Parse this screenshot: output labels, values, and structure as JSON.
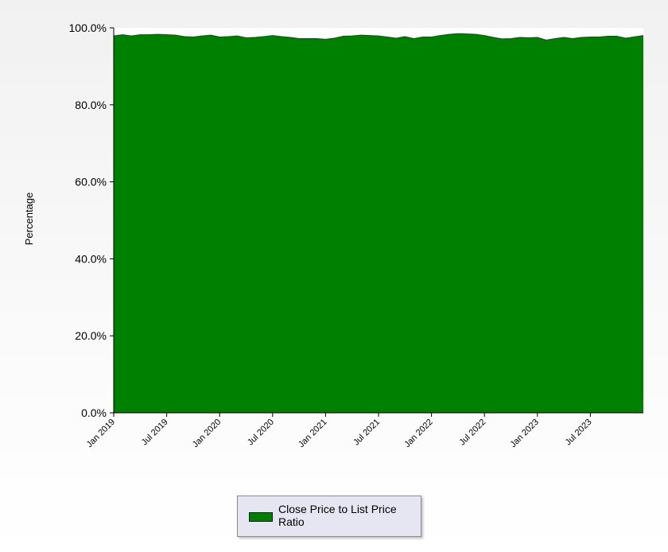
{
  "chart_data": {
    "type": "area",
    "title": "",
    "xlabel": "",
    "ylabel": "Percentage",
    "ylim": [
      0,
      100
    ],
    "y_ticks": [
      "0.0%",
      "20.0%",
      "40.0%",
      "60.0%",
      "80.0%",
      "100.0%"
    ],
    "y_tick_values": [
      0,
      20,
      40,
      60,
      80,
      100
    ],
    "x_range": [
      "2019-01",
      "2023-12"
    ],
    "x_ticks": [
      "Jan 2019",
      "Jul 2019",
      "Jan 2020",
      "Jul 2020",
      "Jan 2021",
      "Jul 2021",
      "Jan 2022",
      "Jul 2022",
      "Jan 2023",
      "Jul 2023"
    ],
    "x_tick_months": [
      "2019-01",
      "2019-07",
      "2020-01",
      "2020-07",
      "2021-01",
      "2021-07",
      "2022-01",
      "2022-07",
      "2023-01",
      "2023-07"
    ],
    "grid": false,
    "legend_position": "bottom-center",
    "series": [
      {
        "name": "Close Price to List Price Ratio",
        "color": "#008000",
        "x": [
          "2019-01",
          "2019-02",
          "2019-03",
          "2019-04",
          "2019-05",
          "2019-06",
          "2019-07",
          "2019-08",
          "2019-09",
          "2019-10",
          "2019-11",
          "2019-12",
          "2020-01",
          "2020-02",
          "2020-03",
          "2020-04",
          "2020-05",
          "2020-06",
          "2020-07",
          "2020-08",
          "2020-09",
          "2020-10",
          "2020-11",
          "2020-12",
          "2021-01",
          "2021-02",
          "2021-03",
          "2021-04",
          "2021-05",
          "2021-06",
          "2021-07",
          "2021-08",
          "2021-09",
          "2021-10",
          "2021-11",
          "2021-12",
          "2022-01",
          "2022-02",
          "2022-03",
          "2022-04",
          "2022-05",
          "2022-06",
          "2022-07",
          "2022-08",
          "2022-09",
          "2022-10",
          "2022-11",
          "2022-12",
          "2023-01",
          "2023-02",
          "2023-03",
          "2023-04",
          "2023-05",
          "2023-06",
          "2023-07",
          "2023-08",
          "2023-09",
          "2023-10",
          "2023-11",
          "2023-12"
        ],
        "values": [
          97.9,
          98.2,
          97.9,
          98.2,
          98.2,
          98.3,
          98.2,
          98.1,
          97.7,
          97.6,
          97.9,
          98.1,
          97.6,
          97.7,
          97.9,
          97.4,
          97.5,
          97.7,
          98.0,
          97.7,
          97.5,
          97.2,
          97.2,
          97.2,
          97.0,
          97.3,
          97.8,
          97.9,
          98.1,
          98.0,
          97.9,
          97.6,
          97.3,
          97.7,
          97.2,
          97.6,
          97.6,
          98.0,
          98.3,
          98.5,
          98.4,
          98.3,
          98.0,
          97.5,
          97.1,
          97.2,
          97.5,
          97.4,
          97.5,
          96.8,
          97.2,
          97.5,
          97.2,
          97.5,
          97.6,
          97.6,
          97.8,
          97.8,
          97.3,
          98.0
        ]
      }
    ]
  }
}
